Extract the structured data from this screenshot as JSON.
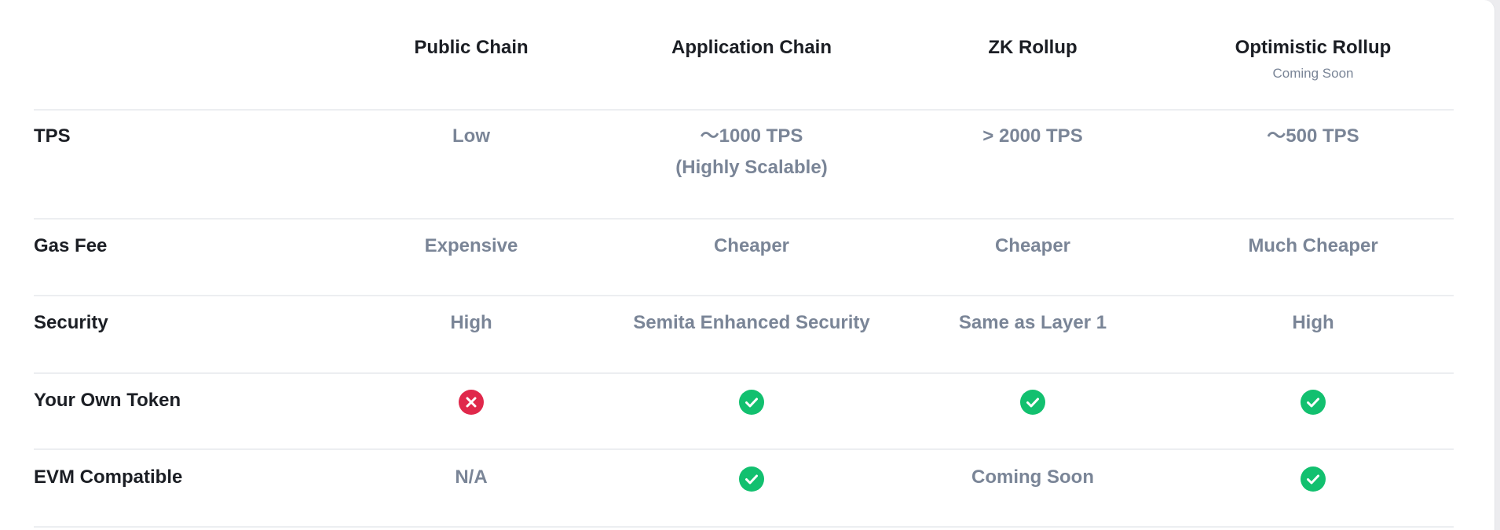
{
  "columns": [
    {
      "title": "Public Chain",
      "subtitle": ""
    },
    {
      "title": "Application Chain",
      "subtitle": ""
    },
    {
      "title": "ZK Rollup",
      "subtitle": ""
    },
    {
      "title": "Optimistic Rollup",
      "subtitle": "Coming Soon"
    }
  ],
  "rows": [
    {
      "label": "TPS",
      "cells": [
        {
          "text": "Low"
        },
        {
          "text": "～1000 TPS",
          "text2": "(Highly Scalable)"
        },
        {
          "text": "> 2000 TPS"
        },
        {
          "text": "～500 TPS"
        }
      ]
    },
    {
      "label": "Gas Fee",
      "cells": [
        {
          "text": "Expensive"
        },
        {
          "text": "Cheaper"
        },
        {
          "text": "Cheaper"
        },
        {
          "text": "Much Cheaper"
        }
      ]
    },
    {
      "label": "Security",
      "cells": [
        {
          "text": "High"
        },
        {
          "text": "Semita Enhanced Security"
        },
        {
          "text": "Same as Layer 1"
        },
        {
          "text": "High"
        }
      ]
    },
    {
      "label": "Your Own Token",
      "cells": [
        {
          "icon": "x-circle-icon"
        },
        {
          "icon": "check-circle-icon"
        },
        {
          "icon": "check-circle-icon"
        },
        {
          "icon": "check-circle-icon"
        }
      ]
    },
    {
      "label": "EVM Compatible",
      "cells": [
        {
          "text": "N/A"
        },
        {
          "icon": "check-circle-icon"
        },
        {
          "text": "Coming Soon"
        },
        {
          "icon": "check-circle-icon"
        }
      ]
    }
  ],
  "colors": {
    "check": "#12c06f",
    "cross": "#e0284b",
    "value_text": "#7a8597",
    "heading_text": "#1b1e24"
  }
}
